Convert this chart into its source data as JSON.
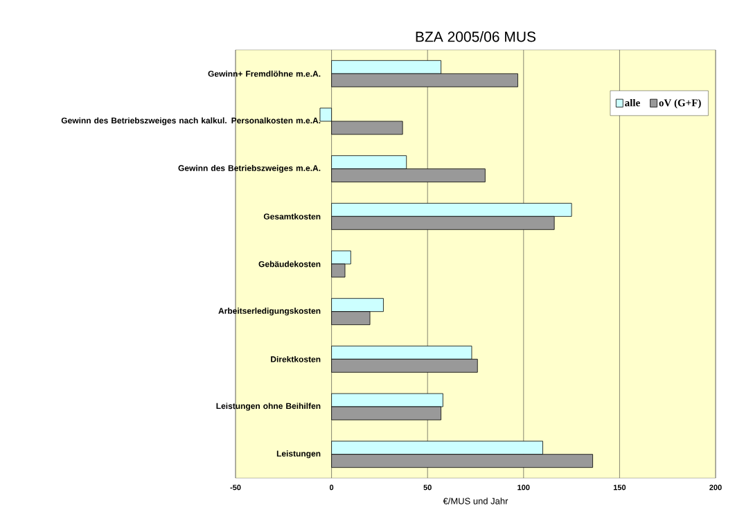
{
  "chart_data": {
    "type": "bar",
    "orientation": "horizontal",
    "title": "BZA 2005/06 MUS",
    "xlabel": "€/MUS und Jahr",
    "categories": [
      "Gewinn+ Fremdlöhne m.e.A.",
      "Gewinn des Betriebszweiges nach kalkul. Personalkosten m.e.A.",
      "Gewinn des Betriebszweiges  m.e.A.",
      "Gesamtkosten",
      "Gebäudekosten",
      "Arbeitserledigungskosten",
      "Direktkosten",
      "Leistungen ohne Beihilfen",
      "Leistungen"
    ],
    "series": [
      {
        "name": "alle",
        "color": "#ccffff",
        "values": [
          57,
          -6,
          39,
          125,
          10,
          27,
          73,
          58,
          110
        ]
      },
      {
        "name": "oV (G+F)",
        "color": "#999999",
        "values": [
          97,
          37,
          80,
          116,
          7,
          20,
          76,
          57,
          136
        ]
      }
    ],
    "xlim": [
      -50,
      200
    ],
    "xticks": [
      -50,
      0,
      50,
      100,
      150,
      200
    ],
    "grid": "x",
    "legend": "top right"
  }
}
